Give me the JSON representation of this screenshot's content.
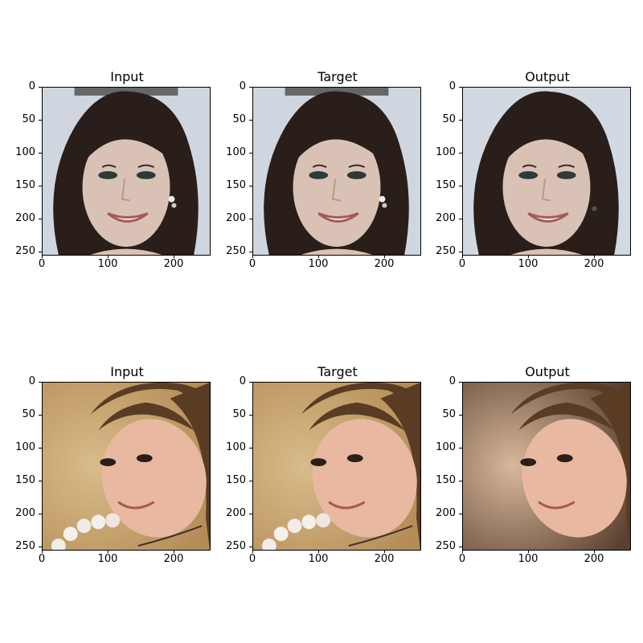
{
  "panels": [
    {
      "title": "Input",
      "scene": "woman-dark-curly-hair-smiling-earring"
    },
    {
      "title": "Target",
      "scene": "woman-dark-curly-hair-smiling-earring"
    },
    {
      "title": "Output",
      "scene": "woman-dark-curly-hair-smiling-generated"
    },
    {
      "title": "Input",
      "scene": "woman-brown-hair-tilted-head-pearl-necklace"
    },
    {
      "title": "Target",
      "scene": "woman-brown-hair-tilted-head-pearl-necklace"
    },
    {
      "title": "Output",
      "scene": "woman-brown-hair-tilted-head-generated"
    }
  ],
  "yticks": [
    "0",
    "50",
    "100",
    "150",
    "200",
    "250"
  ],
  "xticks": [
    "0",
    "100",
    "200"
  ],
  "colors": {
    "hair_dark": "#2a1e1a",
    "skin_light": "#d9c2b5",
    "bg_blue": "#cfd6df",
    "hair_brown": "#5a3b24",
    "skin_warm": "#e8b9a0",
    "bg_warm": "#b48a55"
  }
}
